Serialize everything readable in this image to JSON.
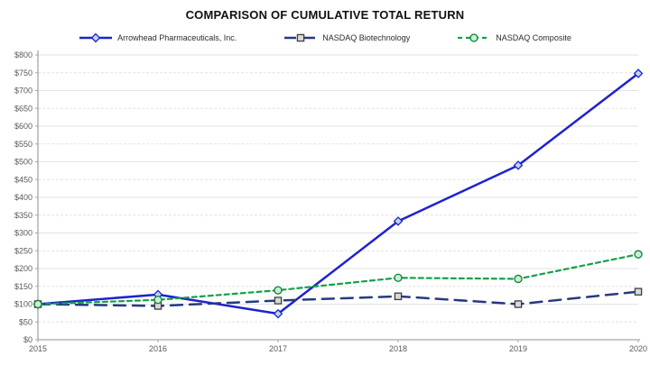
{
  "chart_data": {
    "type": "line",
    "title": "COMPARISON OF CUMULATIVE TOTAL RETURN",
    "x": [
      "2015",
      "2016",
      "2017",
      "2018",
      "2019",
      "2020"
    ],
    "ylim": [
      0,
      800
    ],
    "ytick_step": 50,
    "ytick_prefix": "$",
    "grid": true,
    "legend_position": "top",
    "axis_color": "#A6A6A6",
    "grid_color": "#E2E2E2",
    "tick_label_color": "#595959",
    "series": [
      {
        "name": "Arrowhead Pharmaceuticals, Inc.",
        "values": [
          100,
          127,
          73,
          333,
          490,
          748
        ],
        "color": "#1E22CE",
        "dash": "solid",
        "line_width": 2.5,
        "marker": "diamond",
        "marker_fill": "#BDD7EE",
        "marker_stroke": "#1E22CE"
      },
      {
        "name": "NASDAQ Biotechnology",
        "values": [
          100,
          95,
          110,
          122,
          100,
          135
        ],
        "color": "#263A80",
        "dash": "13,8",
        "line_width": 2.5,
        "marker": "square",
        "marker_fill": "#D9D9D9",
        "marker_stroke": "#3F3F3F"
      },
      {
        "name": "NASDAQ Composite",
        "values": [
          100,
          112,
          139,
          174,
          171,
          240
        ],
        "color": "#12A148",
        "dash": "5,4",
        "line_width": 2.2,
        "marker": "circle",
        "marker_fill": "#C9EFD2",
        "marker_stroke": "#0B8038"
      }
    ]
  }
}
